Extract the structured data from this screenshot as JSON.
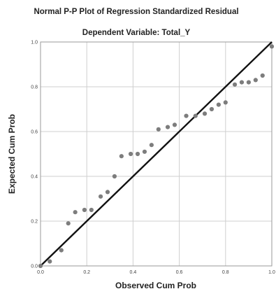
{
  "chart_data": {
    "type": "scatter",
    "title": "Normal P-P Plot of Regression Standardized Residual",
    "subtitle": "Dependent Variable: Total_Y",
    "xlabel": "Observed Cum Prob",
    "ylabel": "Expected Cum Prob",
    "xlim": [
      0,
      1
    ],
    "ylim": [
      0,
      1
    ],
    "x_ticks": [
      "0.0",
      "0.2",
      "0.4",
      "0.6",
      "0.8",
      "1.0"
    ],
    "y_ticks": [
      "0.0",
      "0.2",
      "0.4",
      "0.6",
      "0.8",
      "1.0"
    ],
    "grid": true,
    "reference_line": {
      "from": [
        0,
        0
      ],
      "to": [
        1,
        1
      ]
    },
    "colors": {
      "points": "#7d7d7d",
      "line": "#111111",
      "grid": "#cfcfcf",
      "frame": "#9a9a9a"
    },
    "series": [
      {
        "x": [
          0.0,
          0.04,
          0.09,
          0.12,
          0.15,
          0.19,
          0.22,
          0.26,
          0.29,
          0.32,
          0.35,
          0.39,
          0.42,
          0.45,
          0.48,
          0.51,
          0.55,
          0.58,
          0.63,
          0.67,
          0.71,
          0.74,
          0.77,
          0.8,
          0.84,
          0.87,
          0.9,
          0.93,
          0.96,
          1.0
        ],
        "y": [
          0.0,
          0.02,
          0.07,
          0.19,
          0.24,
          0.25,
          0.25,
          0.31,
          0.33,
          0.4,
          0.49,
          0.5,
          0.5,
          0.51,
          0.54,
          0.61,
          0.62,
          0.63,
          0.67,
          0.67,
          0.68,
          0.7,
          0.72,
          0.73,
          0.81,
          0.82,
          0.82,
          0.83,
          0.85,
          0.98
        ]
      }
    ]
  }
}
